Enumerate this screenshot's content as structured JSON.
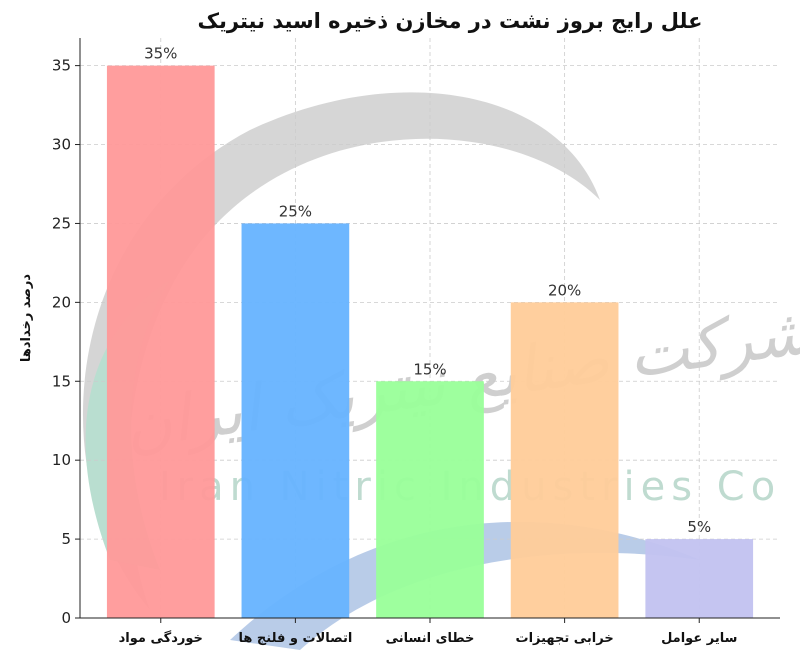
{
  "chart_data": {
    "type": "bar",
    "title": "علل رایج بروز نشت در مخازن ذخیره اسید نیتریک",
    "xlabel": "",
    "ylabel": "درصد رخدادها",
    "categories": [
      "خوردگی مواد",
      "اتصالات و فلنج ها",
      "خطای انسانی",
      "خرابی تجهیزات",
      "سایر عوامل"
    ],
    "values": [
      35,
      25,
      15,
      20,
      5
    ],
    "data_labels": [
      "35%",
      "25%",
      "15%",
      "20%",
      "5%"
    ],
    "colors": [
      "#ff9999",
      "#66b3ff",
      "#99ff99",
      "#ffcc99",
      "#c2c2f0"
    ],
    "ylim": [
      0,
      36.75
    ],
    "yticks": [
      0,
      5,
      10,
      15,
      20,
      25,
      30,
      35
    ],
    "grid": true,
    "grid_style": "dashed"
  },
  "watermark": {
    "text_en": "Iran Nitric Industries Co",
    "text_fa": "شرکت صنایع نیتریک ایران"
  }
}
